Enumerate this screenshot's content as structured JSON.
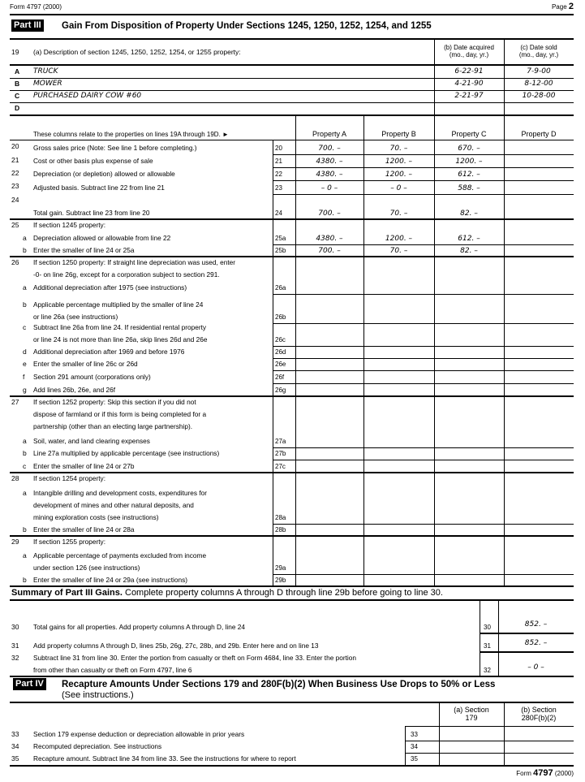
{
  "header": {
    "form_label": "Form 4797 (2000)",
    "page_label": "Page",
    "page_number": "2"
  },
  "part3": {
    "badge": "Part III",
    "title": "Gain From Disposition of Property Under Sections 1245, 1250, 1252, 1254, and 1255",
    "line19": {
      "num": "19",
      "desc": "(a) Description of section 1245, 1250, 1252, 1254, or 1255 property:",
      "col_b": "(b) Date acquired\n(mo., day, yr.)",
      "col_c": "(c) Date sold\n(mo., day, yr.)"
    },
    "properties": [
      {
        "letter": "A",
        "desc": "TRUCK",
        "acquired": "6-22-91",
        "sold": "7-9-00"
      },
      {
        "letter": "B",
        "desc": "MOWER",
        "acquired": "4-21-90",
        "sold": "8-12-00"
      },
      {
        "letter": "C",
        "desc": "PURCHASED DAIRY COW #60",
        "acquired": "2-21-97",
        "sold": "10-28-00"
      },
      {
        "letter": "D",
        "desc": "",
        "acquired": "",
        "sold": ""
      }
    ],
    "columns_note": "These columns relate to the properties on lines 19A through 19D. ►",
    "column_headers": [
      "Property A",
      "Property B",
      "Property C",
      "Property D"
    ],
    "lines": [
      {
        "num": "20",
        "letter": "",
        "text": "Gross sales price (Note: See line 1 before completing.)",
        "box": "20",
        "values": [
          "700. –",
          "70. –",
          "670. –",
          ""
        ]
      },
      {
        "num": "21",
        "letter": "",
        "text": "Cost or other basis plus expense of sale",
        "box": "21",
        "values": [
          "4380. –",
          "1200. –",
          "1200. –",
          ""
        ]
      },
      {
        "num": "22",
        "letter": "",
        "text": "Depreciation (or depletion) allowed or allowable",
        "box": "22",
        "values": [
          "4380. –",
          "1200. –",
          "612. –",
          ""
        ]
      },
      {
        "num": "23",
        "letter": "",
        "text": "Adjusted basis. Subtract line 22 from line 21",
        "box": "23",
        "values": [
          "– 0 –",
          "– 0 –",
          "588. –",
          ""
        ]
      },
      {
        "num": "24",
        "letter": "",
        "text": "Total gain. Subtract line 23 from line 20",
        "box": "24",
        "values": [
          "700. –",
          "70. –",
          "82. –",
          ""
        ]
      },
      {
        "num": "25",
        "letter": "",
        "text": "If section 1245 property:",
        "box": "",
        "values": []
      },
      {
        "num": "",
        "letter": "a",
        "text": "Depreciation allowed or allowable from line 22",
        "box": "25a",
        "values": [
          "4380. –",
          "1200. –",
          "612. –",
          ""
        ]
      },
      {
        "num": "",
        "letter": "b",
        "text": "Enter the smaller of line 24 or 25a",
        "box": "25b",
        "values": [
          "700. –",
          "70. –",
          "82. –",
          ""
        ]
      },
      {
        "num": "26",
        "letter": "",
        "text": "If section 1250 property: If straight line depreciation was used, enter\n-0- on line 26g, except for a corporation subject to section 291.",
        "box": "",
        "values": []
      },
      {
        "num": "",
        "letter": "a",
        "text": "Additional depreciation after 1975 (see instructions)",
        "box": "26a",
        "values": [
          "",
          "",
          "",
          ""
        ]
      },
      {
        "num": "",
        "letter": "b",
        "text": "Applicable percentage multiplied by the smaller of line 24\nor line 26a (see instructions)",
        "box": "26b",
        "values": [
          "",
          "",
          "",
          ""
        ]
      },
      {
        "num": "",
        "letter": "c",
        "text": "Subtract line 26a from line 24. If residential rental property\nor line 24 is not more than line 26a, skip lines 26d and 26e",
        "box": "26c",
        "values": [
          "",
          "",
          "",
          ""
        ]
      },
      {
        "num": "",
        "letter": "d",
        "text": "Additional depreciation after 1969 and before 1976",
        "box": "26d",
        "values": [
          "",
          "",
          "",
          ""
        ]
      },
      {
        "num": "",
        "letter": "e",
        "text": "Enter the smaller of line 26c or 26d",
        "box": "26e",
        "values": [
          "",
          "",
          "",
          ""
        ]
      },
      {
        "num": "",
        "letter": "f",
        "text": "Section 291 amount (corporations only)",
        "box": "26f",
        "values": [
          "",
          "",
          "",
          ""
        ]
      },
      {
        "num": "",
        "letter": "g",
        "text": "Add lines 26b, 26e, and 26f",
        "box": "26g",
        "values": [
          "",
          "",
          "",
          ""
        ]
      },
      {
        "num": "27",
        "letter": "",
        "text": "If section 1252 property: Skip this section if you did not\ndispose of farmland or if this form is being completed for a\npartnership (other than an electing large partnership).",
        "box": "",
        "values": []
      },
      {
        "num": "",
        "letter": "a",
        "text": "Soil, water, and land clearing expenses",
        "box": "27a",
        "values": [
          "",
          "",
          "",
          ""
        ]
      },
      {
        "num": "",
        "letter": "b",
        "text": "Line 27a multiplied by applicable percentage (see instructions)",
        "box": "27b",
        "values": [
          "",
          "",
          "",
          ""
        ]
      },
      {
        "num": "",
        "letter": "c",
        "text": "Enter the smaller of line 24 or 27b",
        "box": "27c",
        "values": [
          "",
          "",
          "",
          ""
        ]
      },
      {
        "num": "28",
        "letter": "",
        "text": "If section 1254 property:",
        "box": "",
        "values": []
      },
      {
        "num": "",
        "letter": "a",
        "text": "Intangible drilling and development costs, expenditures for\ndevelopment of mines and other natural deposits, and\nmining exploration costs (see instructions)",
        "box": "28a",
        "values": [
          "",
          "",
          "",
          ""
        ]
      },
      {
        "num": "",
        "letter": "b",
        "text": "Enter the smaller of line 24 or 28a",
        "box": "28b",
        "values": [
          "",
          "",
          "",
          ""
        ]
      },
      {
        "num": "29",
        "letter": "",
        "text": "If section 1255 property:",
        "box": "",
        "values": []
      },
      {
        "num": "",
        "letter": "a",
        "text": "Applicable percentage of payments excluded from income\nunder section 126 (see instructions)",
        "box": "29a",
        "values": [
          "",
          "",
          "",
          ""
        ]
      },
      {
        "num": "",
        "letter": "b",
        "text": "Enter the smaller of line 24 or 29a (see instructions)",
        "box": "29b",
        "values": [
          "",
          "",
          "",
          ""
        ]
      }
    ]
  },
  "summary": {
    "title": "Summary of Part III Gains.",
    "subtitle": "Complete property columns A through D through line 29b before going to line 30.",
    "lines": [
      {
        "num": "30",
        "text": "Total gains for all properties. Add property columns A through D, line 24",
        "box": "30",
        "value": "852. –"
      },
      {
        "num": "31",
        "text": "Add property columns A through D, lines 25b, 26g, 27c, 28b, and 29b. Enter here and on line 13",
        "box": "31",
        "value": "852. –"
      },
      {
        "num": "32",
        "text": "Subtract line 31 from line 30. Enter the portion from casualty or theft on Form 4684, line 33. Enter the portion\nfrom other than casualty or theft on Form 4797, line 6",
        "box": "32",
        "value": "– 0 –"
      }
    ]
  },
  "part4": {
    "badge": "Part IV",
    "title": "Recapture Amounts Under Sections 179 and 280F(b)(2) When Business Use Drops to 50% or Less",
    "subtitle": "(See instructions.)",
    "col_a": "(a) Section\n179",
    "col_b": "(b) Section\n280F(b)(2)",
    "lines": [
      {
        "num": "33",
        "text": "Section 179 expense deduction or depreciation allowable in prior years",
        "box": "33",
        "values": [
          "",
          ""
        ]
      },
      {
        "num": "34",
        "text": "Recomputed depreciation. See instructions",
        "box": "34",
        "values": [
          "",
          ""
        ]
      },
      {
        "num": "35",
        "text": "Recapture amount. Subtract line 34 from line 33. See the instructions for where to report",
        "box": "35",
        "values": [
          "",
          ""
        ]
      }
    ]
  },
  "footer": {
    "form_word": "Form",
    "form_number": "4797",
    "year": "(2000)"
  }
}
